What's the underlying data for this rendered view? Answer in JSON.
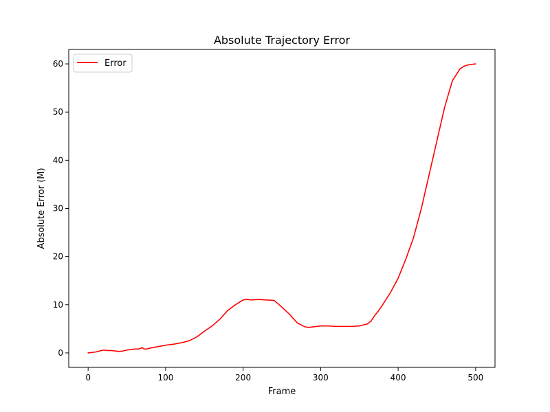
{
  "chart_data": {
    "type": "line",
    "title": "Absolute Trajectory Error",
    "xlabel": "Frame",
    "ylabel": "Absolute Error (M)",
    "xlim": [
      -25,
      525
    ],
    "ylim": [
      -3,
      63
    ],
    "xticks": [
      0,
      100,
      200,
      300,
      400,
      500
    ],
    "yticks": [
      0,
      10,
      20,
      30,
      40,
      50,
      60
    ],
    "grid": false,
    "legend_position": "top-left",
    "series": [
      {
        "name": "Error",
        "color": "#ff0000",
        "x": [
          0,
          5,
          10,
          15,
          20,
          25,
          30,
          35,
          40,
          45,
          50,
          55,
          60,
          65,
          70,
          72,
          75,
          80,
          90,
          100,
          110,
          120,
          130,
          140,
          150,
          160,
          170,
          180,
          190,
          200,
          205,
          210,
          220,
          230,
          240,
          250,
          260,
          270,
          280,
          285,
          290,
          300,
          310,
          320,
          330,
          340,
          350,
          360,
          365,
          370,
          375,
          380,
          390,
          400,
          410,
          420,
          430,
          440,
          450,
          460,
          470,
          480,
          485,
          490,
          495,
          500
        ],
        "y": [
          0.0,
          0.1,
          0.2,
          0.4,
          0.6,
          0.5,
          0.5,
          0.4,
          0.3,
          0.4,
          0.6,
          0.7,
          0.8,
          0.8,
          1.1,
          0.8,
          0.8,
          1.0,
          1.3,
          1.6,
          1.8,
          2.1,
          2.5,
          3.3,
          4.5,
          5.6,
          7.0,
          8.8,
          10.0,
          11.0,
          11.1,
          11.0,
          11.1,
          11.0,
          10.9,
          9.5,
          8.0,
          6.2,
          5.4,
          5.3,
          5.4,
          5.6,
          5.6,
          5.5,
          5.5,
          5.5,
          5.6,
          6.0,
          6.6,
          7.8,
          8.8,
          10.0,
          12.5,
          15.5,
          19.5,
          24.0,
          30.0,
          37.0,
          44.0,
          51.0,
          56.5,
          59.0,
          59.5,
          59.8,
          59.9,
          60.0
        ]
      }
    ]
  }
}
